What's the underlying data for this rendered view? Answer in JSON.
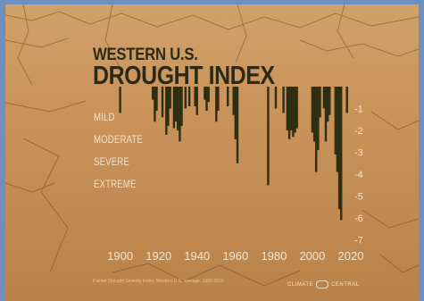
{
  "title_line1": "WESTERN U.S.",
  "title_line2": "DROUGHT INDEX",
  "levels": [
    "MILD",
    "MODERATE",
    "SEVERE",
    "EXTREME"
  ],
  "footnote": "Palmer Drought Severity Index, Western U.S. average, 1900-2020",
  "brand": "CLIMATE CENTRAL",
  "chart_data": {
    "type": "bar",
    "title": "WESTERN U.S. DROUGHT INDEX",
    "xlabel": "",
    "ylabel": "",
    "xlim": [
      1896,
      2020
    ],
    "ylim": [
      -7,
      0
    ],
    "x_ticks": [
      1900,
      1920,
      1940,
      1960,
      1980,
      2000,
      2020
    ],
    "y_ticks": [
      -1,
      -2,
      -3,
      -4,
      -5,
      -6,
      -7
    ],
    "y_tick_labels": [
      "-1",
      "-2",
      "-3",
      "-4",
      "-5",
      "-6",
      "-7"
    ],
    "bar_color": "#2e2e12",
    "x": [
      1900,
      1917,
      1918,
      1919,
      1922,
      1924,
      1925,
      1926,
      1928,
      1929,
      1930,
      1931,
      1932,
      1934,
      1936,
      1939,
      1940,
      1944,
      1945,
      1946,
      1950,
      1951,
      1956,
      1959,
      1960,
      1961,
      1977,
      1981,
      1985,
      1987,
      1988,
      1989,
      1990,
      1991,
      1992,
      2000,
      2001,
      2002,
      2003,
      2004,
      2006,
      2007,
      2008,
      2009,
      2012,
      2013,
      2014,
      2015,
      2018
    ],
    "values": [
      -1.2,
      -0.6,
      -1.6,
      -1.1,
      -1.4,
      -2.2,
      -1.8,
      -1.0,
      -1.9,
      -1.6,
      -2.0,
      -2.5,
      -1.8,
      -1.0,
      -0.9,
      -0.9,
      -1.3,
      -0.6,
      -1.1,
      -0.7,
      -1.6,
      -1.1,
      -0.9,
      -1.3,
      -2.4,
      -3.5,
      -4.5,
      -1.0,
      -1.2,
      -2.0,
      -2.4,
      -2.0,
      -2.3,
      -2.1,
      -1.9,
      -2.1,
      -2.5,
      -3.9,
      -2.9,
      -1.4,
      -1.0,
      -2.5,
      -1.6,
      -1.3,
      -3.1,
      -3.9,
      -5.6,
      -6.1,
      -1.2
    ]
  }
}
